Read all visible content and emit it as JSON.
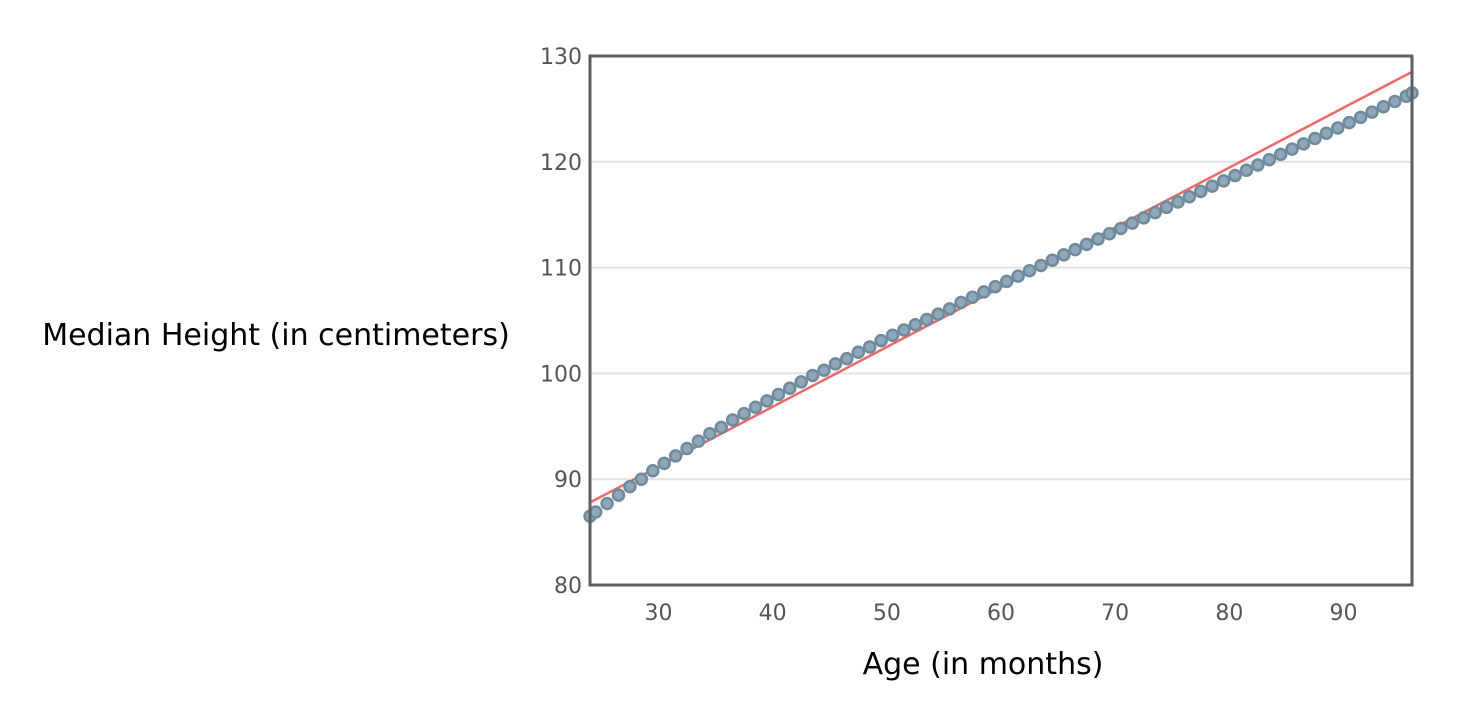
{
  "chart_data": {
    "type": "scatter",
    "title": "",
    "xlabel": "Age (in months)",
    "ylabel": "Median Height (in centimeters)",
    "xlim": [
      24,
      96
    ],
    "ylim": [
      80,
      130
    ],
    "x_ticks": [
      "30",
      "40",
      "50",
      "60",
      "70",
      "80",
      "90"
    ],
    "y_ticks": [
      "80",
      "90",
      "100",
      "110",
      "120",
      "130"
    ],
    "grid": "horizontal",
    "point_color": "#8fa8b8",
    "point_edge_color": "#6e8a9c",
    "trend_line_color": "#e8504f",
    "series": [
      {
        "x": [
          24.0,
          24.5,
          25.5,
          26.5,
          27.5,
          28.5,
          29.5,
          30.5,
          31.5,
          32.5,
          33.5,
          34.5,
          35.5,
          36.5,
          37.5,
          38.5,
          39.5,
          40.5,
          41.5,
          42.5,
          43.5,
          44.5,
          45.5,
          46.5,
          47.5,
          48.5,
          49.5,
          50.5,
          51.5,
          52.5,
          53.5,
          54.5,
          55.5,
          56.5,
          57.5,
          58.5,
          59.5,
          60.5,
          61.5,
          62.5,
          63.5,
          64.5,
          65.5,
          66.5,
          67.5,
          68.5,
          69.5,
          70.5,
          71.5,
          72.5,
          73.5,
          74.5,
          75.5,
          76.5,
          77.5,
          78.5,
          79.5,
          80.5,
          81.5,
          82.5,
          83.5,
          84.5,
          85.5,
          86.5,
          87.5,
          88.5,
          89.5,
          90.5,
          91.5,
          92.5,
          93.5,
          94.5,
          95.5,
          96.0
        ],
        "y": [
          86.5,
          86.9,
          87.7,
          88.5,
          89.3,
          90.0,
          90.8,
          91.5,
          92.2,
          92.9,
          93.6,
          94.3,
          94.9,
          95.6,
          96.2,
          96.8,
          97.4,
          98.0,
          98.6,
          99.2,
          99.8,
          100.3,
          100.9,
          101.4,
          102.0,
          102.5,
          103.1,
          103.6,
          104.1,
          104.6,
          105.1,
          105.6,
          106.1,
          106.7,
          107.2,
          107.7,
          108.2,
          108.7,
          109.2,
          109.7,
          110.2,
          110.7,
          111.2,
          111.7,
          112.2,
          112.7,
          113.2,
          113.7,
          114.2,
          114.7,
          115.2,
          115.7,
          116.2,
          116.7,
          117.2,
          117.7,
          118.2,
          118.7,
          119.2,
          119.7,
          120.2,
          120.7,
          121.2,
          121.7,
          122.2,
          122.7,
          123.2,
          123.7,
          124.2,
          124.7,
          125.2,
          125.7,
          126.2,
          126.5
        ]
      }
    ],
    "trend_line": {
      "x": [
        24,
        96
      ],
      "y": [
        87.8,
        128.5
      ]
    }
  }
}
